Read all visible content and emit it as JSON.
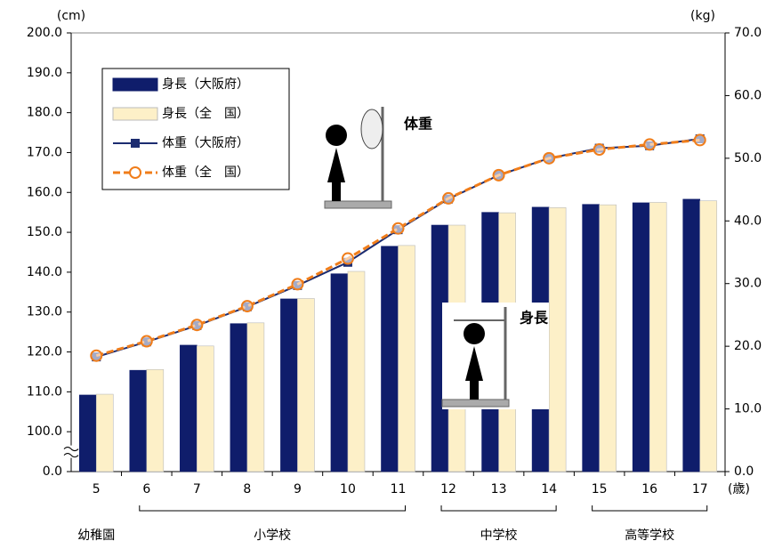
{
  "chart_data": {
    "type": "bar_line",
    "y_label": "(cm)",
    "y2_label": "(kg)",
    "x_unit": "(歳)",
    "categories": [
      "5",
      "6",
      "7",
      "8",
      "9",
      "10",
      "11",
      "12",
      "13",
      "14",
      "15",
      "16",
      "17"
    ],
    "groups": [
      "幼稚園",
      "小学校",
      "中学校",
      "高等学校"
    ],
    "annotations": [
      "体重",
      "身長"
    ],
    "ylim": [
      0,
      200
    ],
    "y_break": [
      0,
      100
    ],
    "yticks": [
      {
        "value": 0,
        "label": "0.0"
      },
      {
        "value": 100,
        "label": "100.0"
      },
      {
        "value": 110,
        "label": "110.0"
      },
      {
        "value": 120,
        "label": "120.0"
      },
      {
        "value": 130,
        "label": "130.0"
      },
      {
        "value": 140,
        "label": "140.0"
      },
      {
        "value": 150,
        "label": "150.0"
      },
      {
        "value": 160,
        "label": "160.0"
      },
      {
        "value": 170,
        "label": "170.0"
      },
      {
        "value": 180,
        "label": "180.0"
      },
      {
        "value": 190,
        "label": "190.0"
      },
      {
        "value": 200,
        "label": "200.0"
      }
    ],
    "y2lim": [
      0,
      70
    ],
    "y2ticks": [
      {
        "value": 0,
        "label": "0.0"
      },
      {
        "value": 10,
        "label": "10.0"
      },
      {
        "value": 20,
        "label": "20.0"
      },
      {
        "value": 30,
        "label": "30.0"
      },
      {
        "value": 40,
        "label": "40.0"
      },
      {
        "value": 50,
        "label": "50.0"
      },
      {
        "value": 60,
        "label": "60.0"
      },
      {
        "value": 70,
        "label": "70.0"
      }
    ],
    "series": [
      {
        "name": "身長（大阪府）",
        "kind": "bar",
        "color": "#0f1d6b",
        "values": [
          109.2,
          115.4,
          121.7,
          127.1,
          133.3,
          139.6,
          146.5,
          151.8,
          155.0,
          156.3,
          157.0,
          157.4,
          158.3
        ]
      },
      {
        "name": "身長（全　国）",
        "kind": "bar",
        "color": "#fdf0c8",
        "values": [
          109.4,
          115.6,
          121.5,
          127.3,
          133.4,
          140.2,
          146.7,
          151.8,
          154.9,
          156.2,
          156.9,
          157.5,
          157.9
        ]
      },
      {
        "name": "体重（大阪府）",
        "kind": "line",
        "axis": "y2",
        "color": "#1c2c70",
        "values": [
          18.3,
          20.7,
          23.3,
          26.3,
          29.7,
          33.4,
          38.6,
          43.5,
          47.3,
          50.0,
          51.6,
          52.0,
          53.1
        ]
      },
      {
        "name": "体重（全　国）",
        "kind": "line",
        "axis": "y2",
        "color": "#f07d1a",
        "values": [
          18.5,
          20.8,
          23.4,
          26.4,
          29.9,
          34.0,
          38.8,
          43.6,
          47.3,
          50.0,
          51.4,
          52.2,
          52.9
        ]
      }
    ]
  }
}
